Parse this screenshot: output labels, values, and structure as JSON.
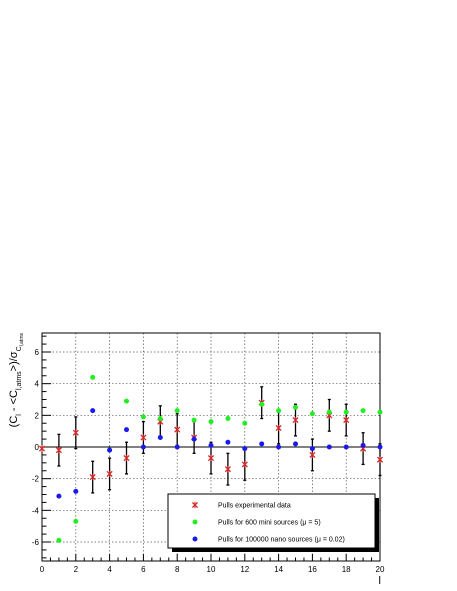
{
  "chart_data": {
    "type": "scatter",
    "xlabel": "l",
    "ylabel": "(C_l - <C_l,atms>)/σ_C_l,atms",
    "ylabel_parts": {
      "open": "(C",
      "sub1": "l",
      "mid": " - <C",
      "sub2": "l,atms",
      "close": ">)/σ",
      "sub3": "C",
      "subsub3": "l,atms"
    },
    "xlim": [
      0,
      20
    ],
    "ylim": [
      -7.2,
      7.2
    ],
    "x_ticks": [
      0,
      2,
      4,
      6,
      8,
      10,
      12,
      14,
      16,
      18,
      20
    ],
    "y_ticks": [
      -6,
      -4,
      -2,
      0,
      2,
      4,
      6
    ],
    "grid": true,
    "legend_placement": "bottom-right",
    "series": [
      {
        "name": "Pulls experimental data",
        "color": "#d62728",
        "marker": "star",
        "points": [
          {
            "x": 0,
            "y": -0.1,
            "err": 0
          },
          {
            "x": 1,
            "y": -0.2,
            "err": 1.0
          },
          {
            "x": 2,
            "y": 0.9,
            "err": 1.0
          },
          {
            "x": 3,
            "y": -1.9,
            "err": 1.0
          },
          {
            "x": 4,
            "y": -1.7,
            "err": 1.0
          },
          {
            "x": 5,
            "y": -0.7,
            "err": 1.0
          },
          {
            "x": 6,
            "y": 0.6,
            "err": 1.0
          },
          {
            "x": 7,
            "y": 1.6,
            "err": 1.0
          },
          {
            "x": 8,
            "y": 1.1,
            "err": 1.0
          },
          {
            "x": 9,
            "y": 0.6,
            "err": 1.0
          },
          {
            "x": 10,
            "y": -0.7,
            "err": 1.0
          },
          {
            "x": 11,
            "y": -1.4,
            "err": 1.0
          },
          {
            "x": 12,
            "y": -1.1,
            "err": 1.0
          },
          {
            "x": 13,
            "y": 2.8,
            "err": 1.0
          },
          {
            "x": 14,
            "y": 1.2,
            "err": 1.0
          },
          {
            "x": 15,
            "y": 1.7,
            "err": 1.0
          },
          {
            "x": 16,
            "y": -0.5,
            "err": 1.0
          },
          {
            "x": 17,
            "y": 2.0,
            "err": 1.0
          },
          {
            "x": 18,
            "y": 1.7,
            "err": 1.0
          },
          {
            "x": 19,
            "y": -0.1,
            "err": 1.0
          },
          {
            "x": 20,
            "y": -0.8,
            "err": 1.0
          }
        ]
      },
      {
        "name": "Pulls for 600 mini sources (μ = 5)",
        "color": "#22ee22",
        "marker": "circle",
        "points": [
          {
            "x": 1,
            "y": -5.9
          },
          {
            "x": 2,
            "y": -4.7
          },
          {
            "x": 3,
            "y": 4.4
          },
          {
            "x": 4,
            "y": -0.2
          },
          {
            "x": 5,
            "y": 2.9
          },
          {
            "x": 6,
            "y": 1.9
          },
          {
            "x": 7,
            "y": 1.8
          },
          {
            "x": 8,
            "y": 2.3
          },
          {
            "x": 9,
            "y": 1.7
          },
          {
            "x": 10,
            "y": 1.6
          },
          {
            "x": 11,
            "y": 1.8
          },
          {
            "x": 12,
            "y": 1.5
          },
          {
            "x": 13,
            "y": 2.7
          },
          {
            "x": 14,
            "y": 2.3
          },
          {
            "x": 15,
            "y": 2.5
          },
          {
            "x": 16,
            "y": 2.1
          },
          {
            "x": 17,
            "y": 2.2
          },
          {
            "x": 18,
            "y": 2.2
          },
          {
            "x": 19,
            "y": 2.3
          },
          {
            "x": 20,
            "y": 2.2
          }
        ]
      },
      {
        "name": "Pulls for 100000 nano sources (μ = 0.02)",
        "color": "#1a1aee",
        "marker": "circle",
        "points": [
          {
            "x": 1,
            "y": -3.1
          },
          {
            "x": 2,
            "y": -2.8
          },
          {
            "x": 3,
            "y": 2.3
          },
          {
            "x": 4,
            "y": -0.2
          },
          {
            "x": 5,
            "y": 1.1
          },
          {
            "x": 6,
            "y": 0.0
          },
          {
            "x": 7,
            "y": 0.6
          },
          {
            "x": 8,
            "y": 0.0
          },
          {
            "x": 9,
            "y": 0.5
          },
          {
            "x": 10,
            "y": 0.1
          },
          {
            "x": 11,
            "y": 0.3
          },
          {
            "x": 12,
            "y": -0.1
          },
          {
            "x": 13,
            "y": 0.2
          },
          {
            "x": 14,
            "y": 0.0
          },
          {
            "x": 15,
            "y": 0.2
          },
          {
            "x": 16,
            "y": -0.1
          },
          {
            "x": 17,
            "y": 0.0
          },
          {
            "x": 18,
            "y": 0.0
          },
          {
            "x": 19,
            "y": 0.1
          },
          {
            "x": 20,
            "y": 0.0
          }
        ]
      }
    ]
  }
}
